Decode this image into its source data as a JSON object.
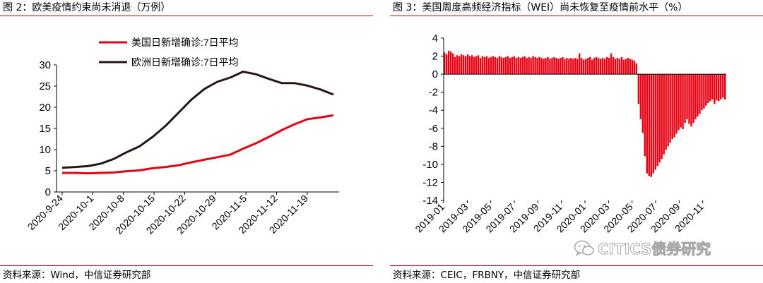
{
  "left_panel": {
    "title": "图 2：欧美疫情约束尚未消退（万例）",
    "source": "资料来源：Wind，中信证券研究部"
  },
  "right_panel": {
    "title": "图 3：美国周度高频经济指标（WEI）尚未恢复至疫情前水平（%）",
    "source": "资料来源：CEIC，FRBNY，中信证券研究部"
  },
  "watermark": {
    "text": "CITICS债券研究",
    "icon": "wechat-icon"
  },
  "chart_data": [
    {
      "type": "line",
      "title": "",
      "xlabel": "",
      "ylabel": "",
      "ylim": [
        0,
        30
      ],
      "yticks": [
        0,
        5,
        10,
        15,
        20,
        25,
        30
      ],
      "grid": false,
      "legend_position": "top-left",
      "x": [
        "2020-9-24",
        "2020-9-27",
        "2020-9-30",
        "2020-10-3",
        "2020-10-6",
        "2020-10-9",
        "2020-10-12",
        "2020-10-15",
        "2020-10-18",
        "2020-10-21",
        "2020-10-24",
        "2020-10-27",
        "2020-10-30",
        "2020-11-2",
        "2020-11-5",
        "2020-11-8",
        "2020-11-11",
        "2020-11-14",
        "2020-11-17",
        "2020-11-20",
        "2020-11-23",
        "2020-11-25"
      ],
      "xtick_labels": [
        "2020-9-24",
        "2020-10-1",
        "2020-10-8",
        "2020-10-15",
        "2020-10-22",
        "2020-10-29",
        "2020-11-5",
        "2020-11-12",
        "2020-11-19"
      ],
      "series": [
        {
          "name": "美国日新增确诊:7日平均",
          "color": "#e60012",
          "values": [
            4.5,
            4.5,
            4.4,
            4.5,
            4.6,
            4.9,
            5.1,
            5.6,
            5.9,
            6.3,
            7.0,
            7.6,
            8.2,
            8.8,
            10.2,
            11.5,
            13.0,
            14.6,
            16.0,
            17.2,
            17.6,
            18.1
          ]
        },
        {
          "name": "欧洲日新增确诊:7日平均",
          "color": "#231815",
          "values": [
            5.7,
            5.9,
            6.1,
            6.7,
            7.8,
            9.4,
            10.8,
            13.0,
            15.6,
            18.7,
            21.8,
            24.3,
            26.0,
            27.0,
            28.4,
            27.8,
            26.7,
            25.7,
            25.7,
            25.1,
            24.2,
            23.0
          ]
        }
      ]
    },
    {
      "type": "bar",
      "title": "",
      "xlabel": "",
      "ylabel": "",
      "ylim": [
        -14,
        4
      ],
      "yticks": [
        -14,
        -12,
        -10,
        -8,
        -6,
        -4,
        -2,
        0,
        2,
        4
      ],
      "grid": false,
      "color": "#e60012",
      "x_start": "2019-01",
      "xtick_labels": [
        "2019-01",
        "2019-03",
        "2019-05",
        "2019-07",
        "2019-09",
        "2019-11",
        "2020-01",
        "2020-03",
        "2020-05",
        "2020-07",
        "2020-09",
        "2020-11"
      ],
      "values": [
        2.4,
        2.2,
        2.6,
        2.5,
        2.3,
        1.9,
        2.1,
        2.0,
        2.2,
        2.1,
        2.0,
        2.2,
        2.0,
        2.1,
        1.9,
        2.0,
        2.1,
        1.8,
        2.0,
        1.9,
        2.0,
        1.8,
        1.9,
        2.0,
        1.9,
        1.8,
        2.0,
        1.9,
        1.8,
        1.9,
        2.0,
        1.8,
        1.9,
        2.0,
        1.8,
        1.9,
        1.8,
        1.9,
        2.0,
        1.8,
        1.9,
        1.8,
        2.0,
        1.9,
        1.8,
        1.9,
        1.8,
        1.7,
        1.8,
        1.9,
        1.7,
        1.8,
        1.9,
        1.8,
        1.7,
        1.8,
        1.9,
        1.7,
        1.8,
        1.7,
        1.8,
        1.7,
        1.8,
        1.7,
        2.3,
        1.8,
        1.6,
        1.7,
        1.8,
        1.9,
        1.6,
        1.8,
        1.9,
        1.8,
        1.7,
        1.8,
        1.7,
        1.9,
        1.8,
        2.3,
        1.9,
        1.7,
        1.8,
        1.7,
        1.9,
        1.6,
        1.7,
        1.8,
        1.7,
        1.6,
        1.5,
        1.2,
        -3.3,
        -5.0,
        -6.5,
        -9.1,
        -11.0,
        -11.3,
        -11.4,
        -11.0,
        -10.6,
        -10.2,
        -9.8,
        -9.4,
        -8.9,
        -8.4,
        -8.0,
        -7.6,
        -7.2,
        -7.0,
        -6.6,
        -6.2,
        -5.9,
        -6.1,
        -5.4,
        -5.0,
        -5.5,
        -5.8,
        -5.4,
        -5.0,
        -4.7,
        -4.4,
        -4.0,
        -3.8,
        -3.5,
        -3.2,
        -3.0,
        -2.8,
        -3.3,
        -2.9,
        -3.0,
        -2.8,
        -2.6,
        -2.8
      ]
    }
  ]
}
